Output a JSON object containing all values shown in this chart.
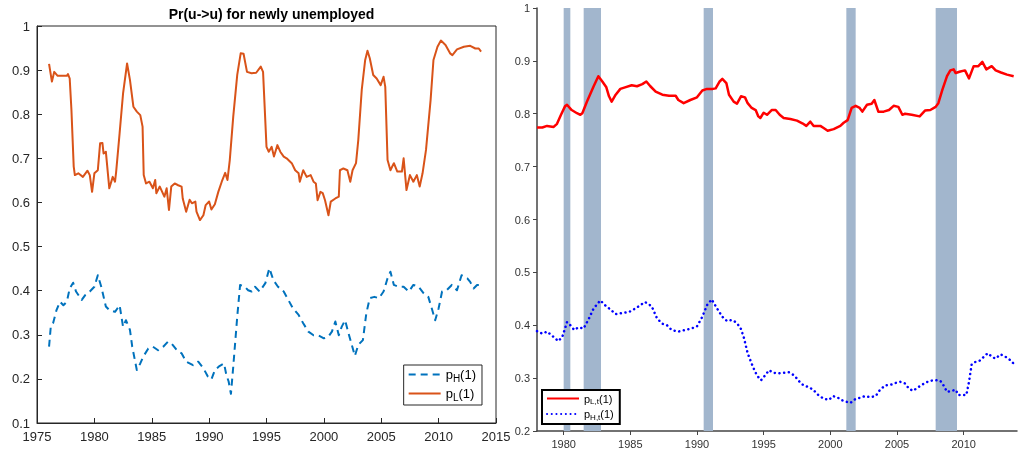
{
  "chart_data": [
    {
      "type": "line",
      "title": "Pr(u->u) for newly unemployed",
      "xlim": [
        1975,
        2015
      ],
      "xticks": [
        1975,
        1980,
        1985,
        1990,
        1995,
        2000,
        2005,
        2010,
        2015
      ],
      "ylim": [
        0.1,
        1
      ],
      "yticks": [
        0.1,
        0.2,
        0.3,
        0.4,
        0.5,
        0.6,
        0.7,
        0.8,
        0.9,
        1
      ],
      "legend": "bottom right",
      "marker": "none",
      "series": [
        {
          "name": "p$_{H}$(1)",
          "color": "#0072bd",
          "line_style": "dashed",
          "x": [
            1976.05,
            1976.2,
            1976.4,
            1976.7,
            1977.0,
            1977.3,
            1977.6,
            1977.85,
            1978.15,
            1978.4,
            1978.9,
            1979.2,
            1979.6,
            1980.0,
            1980.3,
            1980.6,
            1981.0,
            1981.3,
            1981.8,
            1982.2,
            1982.5,
            1982.75,
            1983.1,
            1983.3,
            1983.7,
            1984.0,
            1984.25,
            1984.7,
            1985.1,
            1985.55,
            1986.0,
            1986.4,
            1986.7,
            1987.2,
            1987.6,
            1988.0,
            1988.6,
            1989.05,
            1989.5,
            1989.9,
            1990.2,
            1990.5,
            1990.9,
            1991.3,
            1991.5,
            1991.7,
            1991.9,
            1992.1,
            1992.45,
            1992.7,
            1993.1,
            1993.4,
            1993.7,
            1994.0,
            1994.4,
            1994.9,
            1995.25,
            1995.6,
            1996.0,
            1996.5,
            1996.9,
            1997.3,
            1997.8,
            1998.2,
            1998.65,
            1999.1,
            1999.5,
            2000.0,
            2000.4,
            2000.7,
            2001.0,
            2001.3,
            2001.55,
            2001.85,
            2002.15,
            2002.4,
            2002.7,
            2003.0,
            2003.4,
            2003.7,
            2004.0,
            2004.4,
            2004.8,
            2005.2,
            2005.55,
            2005.8,
            2006.1,
            2006.5,
            2006.95,
            2007.4,
            2007.8,
            2008.25,
            2008.7,
            2009.1,
            2009.4,
            2009.7,
            2010.0,
            2010.3,
            2010.7,
            2011.15,
            2011.6,
            2012.0,
            2012.5,
            2012.75,
            2013.05,
            2013.35,
            2013.7
          ],
          "values": [
            0.273,
            0.318,
            0.326,
            0.356,
            0.375,
            0.367,
            0.375,
            0.405,
            0.418,
            0.398,
            0.379,
            0.39,
            0.398,
            0.409,
            0.435,
            0.409,
            0.364,
            0.356,
            0.352,
            0.367,
            0.318,
            0.333,
            0.311,
            0.273,
            0.22,
            0.235,
            0.25,
            0.269,
            0.273,
            0.265,
            0.273,
            0.284,
            0.281,
            0.265,
            0.258,
            0.239,
            0.231,
            0.239,
            0.224,
            0.205,
            0.199,
            0.22,
            0.229,
            0.235,
            0.209,
            0.194,
            0.166,
            0.227,
            0.341,
            0.413,
            0.409,
            0.401,
            0.398,
            0.409,
            0.398,
            0.417,
            0.451,
            0.424,
            0.409,
            0.398,
            0.379,
            0.36,
            0.345,
            0.326,
            0.307,
            0.299,
            0.299,
            0.292,
            0.296,
            0.307,
            0.33,
            0.299,
            0.318,
            0.333,
            0.303,
            0.28,
            0.252,
            0.277,
            0.288,
            0.349,
            0.383,
            0.386,
            0.383,
            0.398,
            0.428,
            0.443,
            0.413,
            0.409,
            0.409,
            0.398,
            0.413,
            0.409,
            0.394,
            0.386,
            0.36,
            0.333,
            0.36,
            0.398,
            0.401,
            0.413,
            0.401,
            0.435,
            0.428,
            0.42,
            0.405,
            0.413,
            0.413
          ]
        },
        {
          "name": "p$_{L}$(1)",
          "color": "#d95319",
          "line_style": "solid",
          "x": [
            1976.05,
            1976.3,
            1976.5,
            1976.8,
            1977.6,
            1977.7,
            1977.85,
            1978.0,
            1978.2,
            1978.3,
            1978.6,
            1979.0,
            1979.4,
            1979.6,
            1979.8,
            1980.0,
            1980.3,
            1980.5,
            1980.7,
            1980.8,
            1981.0,
            1981.3,
            1981.6,
            1981.8,
            1981.9,
            1982.2,
            1982.5,
            1982.85,
            1983.1,
            1983.4,
            1983.7,
            1984.0,
            1984.2,
            1984.3,
            1984.5,
            1984.8,
            1985.1,
            1985.3,
            1985.4,
            1985.7,
            1986.1,
            1986.3,
            1986.5,
            1986.7,
            1987.0,
            1987.3,
            1987.6,
            1987.7,
            1988.0,
            1988.3,
            1988.5,
            1988.8,
            1988.9,
            1989.2,
            1989.5,
            1989.7,
            1990.0,
            1990.2,
            1990.5,
            1990.8,
            1991.1,
            1991.4,
            1991.6,
            1991.8,
            1992.1,
            1992.45,
            1992.75,
            1993.0,
            1993.3,
            1993.7,
            1994.1,
            1994.5,
            1994.7,
            1995.0,
            1995.2,
            1995.45,
            1995.65,
            1995.95,
            1996.2,
            1996.5,
            1996.75,
            1997.2,
            1997.5,
            1997.8,
            1997.9,
            1998.2,
            1998.5,
            1998.85,
            1999.1,
            1999.3,
            1999.45,
            1999.7,
            1999.9,
            2000.1,
            2000.4,
            2000.6,
            2001.0,
            2001.3,
            2001.4,
            2001.7,
            2002.05,
            2002.3,
            2002.5,
            2002.8,
            2003.0,
            2003.3,
            2003.6,
            2003.8,
            2004.0,
            2004.3,
            2004.6,
            2004.95,
            2005.2,
            2005.35,
            2005.55,
            2005.8,
            2006.1,
            2006.4,
            2006.8,
            2006.95,
            2007.2,
            2007.5,
            2007.8,
            2008.1,
            2008.35,
            2008.6,
            2008.9,
            2009.3,
            2009.55,
            2009.9,
            2010.2,
            2010.6,
            2011.0,
            2011.2,
            2011.6,
            2012.2,
            2012.75,
            2013.2,
            2013.5,
            2013.7
          ],
          "values": [
            0.914,
            0.874,
            0.896,
            0.887,
            0.887,
            0.891,
            0.881,
            0.81,
            0.681,
            0.662,
            0.666,
            0.658,
            0.672,
            0.662,
            0.624,
            0.666,
            0.673,
            0.734,
            0.735,
            0.711,
            0.715,
            0.632,
            0.658,
            0.647,
            0.67,
            0.757,
            0.847,
            0.915,
            0.878,
            0.817,
            0.806,
            0.798,
            0.772,
            0.662,
            0.643,
            0.647,
            0.632,
            0.651,
            0.621,
            0.636,
            0.613,
            0.632,
            0.583,
            0.636,
            0.643,
            0.639,
            0.636,
            0.609,
            0.579,
            0.606,
            0.598,
            0.602,
            0.579,
            0.56,
            0.571,
            0.594,
            0.602,
            0.584,
            0.596,
            0.624,
            0.647,
            0.667,
            0.651,
            0.696,
            0.794,
            0.889,
            0.938,
            0.937,
            0.896,
            0.893,
            0.894,
            0.908,
            0.896,
            0.726,
            0.715,
            0.726,
            0.704,
            0.73,
            0.715,
            0.704,
            0.7,
            0.689,
            0.673,
            0.666,
            0.647,
            0.673,
            0.658,
            0.662,
            0.647,
            0.643,
            0.605,
            0.624,
            0.621,
            0.605,
            0.571,
            0.602,
            0.609,
            0.613,
            0.673,
            0.677,
            0.673,
            0.647,
            0.673,
            0.689,
            0.742,
            0.855,
            0.923,
            0.944,
            0.927,
            0.889,
            0.881,
            0.866,
            0.885,
            0.862,
            0.696,
            0.673,
            0.689,
            0.67,
            0.67,
            0.7,
            0.628,
            0.662,
            0.647,
            0.662,
            0.636,
            0.666,
            0.719,
            0.832,
            0.923,
            0.953,
            0.967,
            0.957,
            0.938,
            0.934,
            0.947,
            0.953,
            0.955,
            0.949,
            0.949,
            0.942
          ]
        }
      ]
    },
    {
      "type": "line",
      "xlim": [
        1978,
        2014
      ],
      "xticks": [
        1980,
        1985,
        1990,
        1995,
        2000,
        2005,
        2010
      ],
      "ylim": [
        0.2,
        1
      ],
      "yticks": [
        0.2,
        0.3,
        0.4,
        0.5,
        0.6,
        0.7,
        0.8,
        0.9,
        1
      ],
      "legend": "bottom left",
      "marker": "none",
      "bands": [
        {
          "axis": "x",
          "from": 1980.0,
          "to": 1980.5,
          "color": "#a2b6cd"
        },
        {
          "axis": "x",
          "from": 1981.5,
          "to": 1982.8,
          "color": "#a2b6cd"
        },
        {
          "axis": "x",
          "from": 1990.5,
          "to": 1991.2,
          "color": "#a2b6cd"
        },
        {
          "axis": "x",
          "from": 2001.2,
          "to": 2001.9,
          "color": "#a2b6cd"
        },
        {
          "axis": "x",
          "from": 2007.9,
          "to": 2009.5,
          "color": "#a2b6cd"
        }
      ],
      "series": [
        {
          "name": "p$_{L,t}$(1)",
          "color": "#ff0000",
          "line_style": "solid",
          "x": [
            1978.0,
            1978.4,
            1978.75,
            1979.0,
            1979.25,
            1979.5,
            1979.8,
            1980.1,
            1980.25,
            1980.6,
            1981.0,
            1981.25,
            1981.4,
            1981.75,
            1982.25,
            1982.6,
            1982.9,
            1983.2,
            1983.4,
            1983.6,
            1983.9,
            1984.25,
            1984.6,
            1985.1,
            1985.5,
            1985.9,
            1986.2,
            1986.5,
            1986.9,
            1987.4,
            1987.9,
            1988.4,
            1988.6,
            1989.0,
            1989.5,
            1990.0,
            1990.4,
            1990.75,
            1991.2,
            1991.4,
            1991.7,
            1991.9,
            1992.2,
            1992.4,
            1992.75,
            1993.0,
            1993.3,
            1993.6,
            1993.8,
            1994.1,
            1994.4,
            1994.6,
            1994.75,
            1995.0,
            1995.25,
            1995.6,
            1995.9,
            1996.2,
            1996.5,
            1997.0,
            1997.5,
            1997.9,
            1998.2,
            1998.5,
            1998.75,
            1999.25,
            1999.5,
            1999.8,
            2000.25,
            2000.75,
            2001.0,
            2001.3,
            2001.6,
            2001.9,
            2002.2,
            2002.4,
            2002.75,
            2003.1,
            2003.3,
            2003.6,
            2004.0,
            2004.4,
            2004.75,
            2005.1,
            2005.4,
            2005.6,
            2006.1,
            2006.7,
            2007.1,
            2007.5,
            2007.9,
            2008.1,
            2008.4,
            2008.75,
            2009.0,
            2009.25,
            2009.4,
            2009.75,
            2010.1,
            2010.4,
            2010.75,
            2011.1,
            2011.4,
            2011.7,
            2012.1,
            2012.4,
            2012.8,
            2013.25,
            2013.75
          ],
          "values": [
            0.774,
            0.774,
            0.777,
            0.776,
            0.775,
            0.781,
            0.798,
            0.814,
            0.817,
            0.807,
            0.801,
            0.798,
            0.801,
            0.823,
            0.852,
            0.871,
            0.861,
            0.85,
            0.833,
            0.823,
            0.836,
            0.847,
            0.85,
            0.854,
            0.852,
            0.856,
            0.861,
            0.852,
            0.842,
            0.836,
            0.834,
            0.834,
            0.826,
            0.82,
            0.826,
            0.831,
            0.844,
            0.847,
            0.847,
            0.848,
            0.861,
            0.866,
            0.858,
            0.836,
            0.823,
            0.819,
            0.833,
            0.831,
            0.82,
            0.811,
            0.807,
            0.795,
            0.792,
            0.802,
            0.798,
            0.807,
            0.807,
            0.798,
            0.792,
            0.79,
            0.787,
            0.782,
            0.777,
            0.785,
            0.777,
            0.777,
            0.773,
            0.768,
            0.771,
            0.777,
            0.783,
            0.788,
            0.811,
            0.815,
            0.811,
            0.804,
            0.817,
            0.819,
            0.826,
            0.804,
            0.804,
            0.807,
            0.815,
            0.813,
            0.798,
            0.8,
            0.798,
            0.795,
            0.806,
            0.807,
            0.813,
            0.82,
            0.845,
            0.871,
            0.882,
            0.884,
            0.877,
            0.88,
            0.882,
            0.867,
            0.89,
            0.89,
            0.898,
            0.884,
            0.89,
            0.882,
            0.878,
            0.874,
            0.871
          ]
        },
        {
          "name": "p$_{H,t}$(1)",
          "color": "#0000ff",
          "line_style": "dotted",
          "x": [
            1978.0,
            1978.4,
            1978.75,
            1979.1,
            1979.6,
            1979.9,
            1980.25,
            1980.5,
            1980.8,
            1981.1,
            1981.5,
            1981.9,
            1982.25,
            1982.75,
            1983.1,
            1983.5,
            1983.9,
            1984.4,
            1984.9,
            1985.4,
            1985.75,
            1986.1,
            1986.6,
            1987.0,
            1987.4,
            1987.75,
            1988.1,
            1988.6,
            1989.1,
            1989.6,
            1990.0,
            1990.4,
            1990.75,
            1991.1,
            1991.5,
            1991.9,
            1992.25,
            1992.6,
            1992.9,
            1993.25,
            1993.5,
            1993.8,
            1994.2,
            1994.5,
            1994.8,
            1995.1,
            1995.4,
            1995.75,
            1996.1,
            1996.5,
            1996.9,
            1997.3,
            1997.7,
            1998.0,
            1998.4,
            1998.75,
            1999.1,
            1999.5,
            1999.9,
            2000.2,
            2000.5,
            2000.9,
            2001.25,
            2001.5,
            2001.9,
            2002.25,
            2002.6,
            2003.0,
            2003.4,
            2003.7,
            2004.1,
            2004.6,
            2004.9,
            2005.25,
            2005.6,
            2005.9,
            2006.2,
            2006.6,
            2007.1,
            2007.5,
            2007.9,
            2008.25,
            2008.5,
            2008.75,
            2009.1,
            2009.4,
            2009.6,
            2009.9,
            2010.2,
            2010.4,
            2010.6,
            2010.9,
            2011.2,
            2011.5,
            2011.8,
            2012.2,
            2012.4,
            2012.75,
            2013.1,
            2013.5,
            2013.8
          ],
          "values": [
            0.389,
            0.384,
            0.388,
            0.381,
            0.37,
            0.378,
            0.406,
            0.4,
            0.391,
            0.396,
            0.394,
            0.413,
            0.432,
            0.447,
            0.438,
            0.43,
            0.421,
            0.423,
            0.425,
            0.432,
            0.438,
            0.444,
            0.436,
            0.413,
            0.403,
            0.4,
            0.391,
            0.388,
            0.391,
            0.394,
            0.398,
            0.416,
            0.438,
            0.449,
            0.432,
            0.416,
            0.408,
            0.41,
            0.406,
            0.396,
            0.378,
            0.347,
            0.321,
            0.305,
            0.296,
            0.305,
            0.315,
            0.31,
            0.309,
            0.31,
            0.311,
            0.305,
            0.293,
            0.286,
            0.283,
            0.277,
            0.268,
            0.261,
            0.259,
            0.266,
            0.264,
            0.258,
            0.255,
            0.253,
            0.261,
            0.263,
            0.266,
            0.264,
            0.266,
            0.277,
            0.286,
            0.288,
            0.291,
            0.293,
            0.29,
            0.28,
            0.276,
            0.283,
            0.291,
            0.295,
            0.296,
            0.295,
            0.286,
            0.274,
            0.276,
            0.278,
            0.268,
            0.268,
            0.268,
            0.293,
            0.326,
            0.331,
            0.333,
            0.34,
            0.347,
            0.339,
            0.337,
            0.345,
            0.341,
            0.334,
            0.326
          ]
        }
      ]
    }
  ]
}
